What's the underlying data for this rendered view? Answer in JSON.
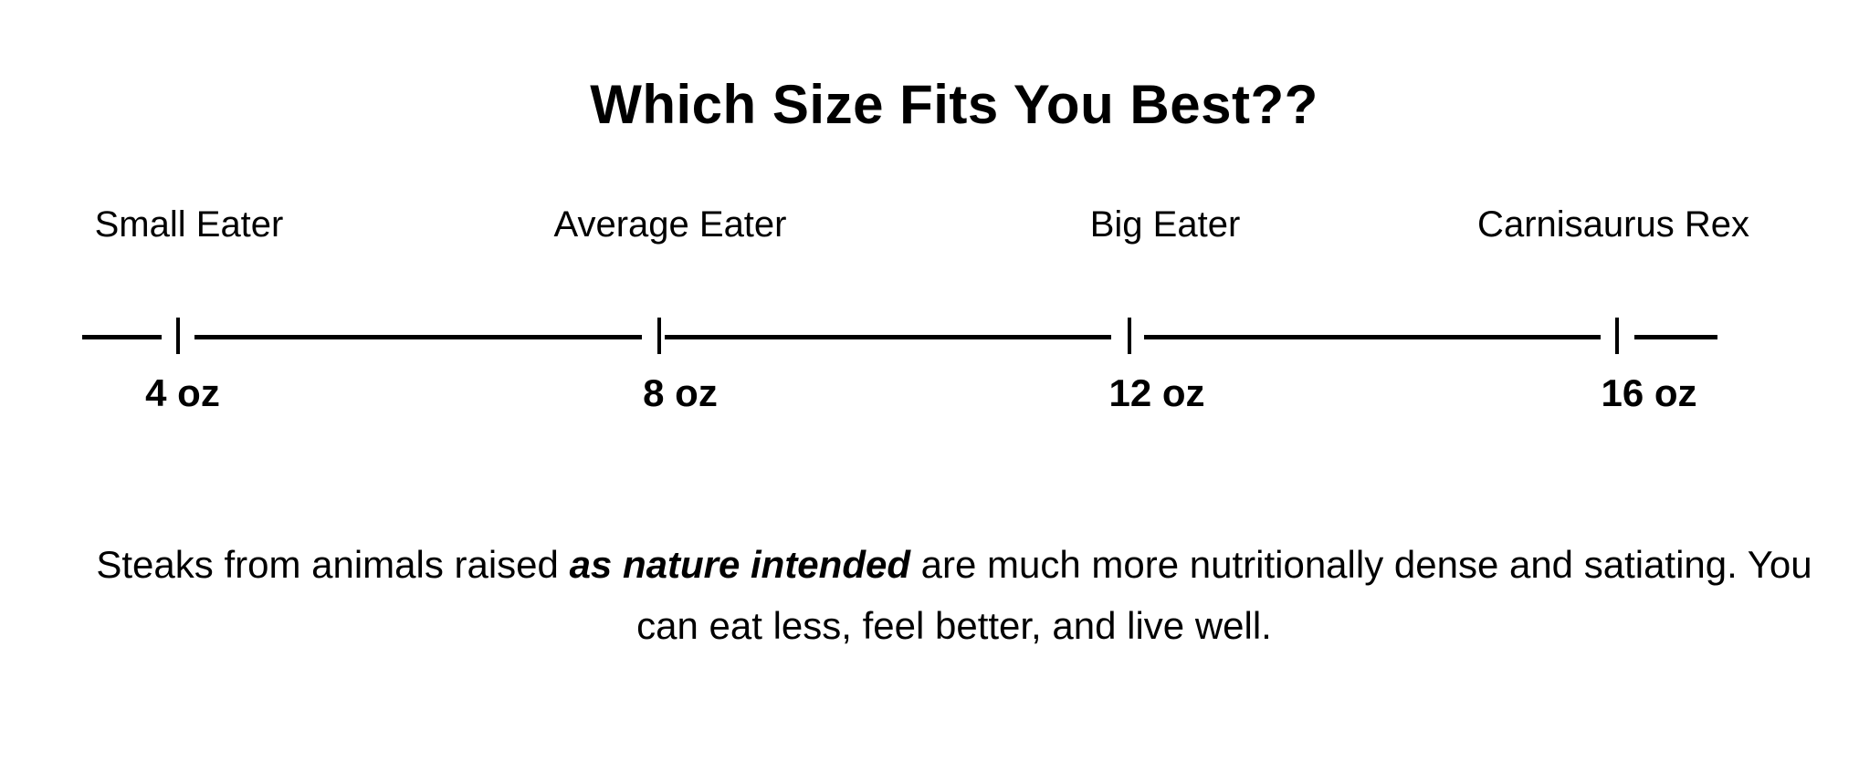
{
  "title": "Which Size Fits You Best??",
  "scale": {
    "categories": [
      {
        "label": "Small Eater",
        "size": "4 oz"
      },
      {
        "label": "Average Eater",
        "size": "8 oz"
      },
      {
        "label": "Big Eater",
        "size": "12 oz"
      },
      {
        "label": "Carnisaurus Rex",
        "size": "16 oz"
      }
    ]
  },
  "footer": {
    "text_before": "Steaks from animals raised ",
    "emphasis": "as nature intended",
    "text_after": " are much more nutritionally dense and satiating. You can eat less, feel better, and live well."
  },
  "colors": {
    "background": "#ffffff",
    "text": "#000000",
    "line": "#000000"
  }
}
